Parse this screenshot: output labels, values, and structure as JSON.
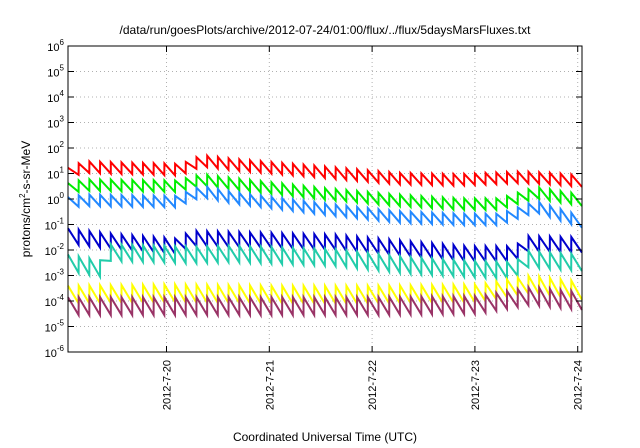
{
  "chart_data": {
    "type": "line",
    "title": "/data/run/goesPlots/archive/2012-07-24/01:00/flux/../flux/5daysMarsFluxes.txt",
    "xlabel": "Coordinated Universal Time (UTC)",
    "ylabel_parts": {
      "pre": "protons/cm",
      "sup": "2",
      "post": "-s-sr-MeV"
    },
    "x_range": [
      "2012-07-19 01:00",
      "2012-07-24 01:00"
    ],
    "x_ticks": [
      {
        "label": "2012-7-20",
        "day": 0.9583
      },
      {
        "label": "2012-7-21",
        "day": 1.9583
      },
      {
        "label": "2012-7-22",
        "day": 2.9583
      },
      {
        "label": "2012-7-23",
        "day": 3.9583
      },
      {
        "label": "2012-7-24",
        "day": 4.9583
      }
    ],
    "y_scale": "log",
    "y_ticks": [
      {
        "base": "10",
        "exp": "6",
        "p": 6
      },
      {
        "base": "10",
        "exp": "5",
        "p": 5
      },
      {
        "base": "10",
        "exp": "4",
        "p": 4
      },
      {
        "base": "10",
        "exp": "3",
        "p": 3
      },
      {
        "base": "10",
        "exp": "2",
        "p": 2
      },
      {
        "base": "10",
        "exp": "1",
        "p": 1
      },
      {
        "base": "10",
        "exp": "0",
        "p": 0
      },
      {
        "base": "10",
        "exp": "-1",
        "p": -1
      },
      {
        "base": "10",
        "exp": "-2",
        "p": -2
      },
      {
        "base": "10",
        "exp": "-3",
        "p": -3
      },
      {
        "base": "10",
        "exp": "-4",
        "p": -4
      },
      {
        "base": "10",
        "exp": "-5",
        "p": -5
      },
      {
        "base": "10",
        "exp": "-6",
        "p": -6
      }
    ],
    "grid": true,
    "series": [
      {
        "color": "#ff0000",
        "cycles": 48,
        "envelope": [
          [
            0.0,
            1.0
          ],
          [
            0.15,
            1.25
          ],
          [
            1.1,
            1.15
          ],
          [
            1.3,
            1.5
          ],
          [
            1.6,
            1.35
          ],
          [
            2.5,
            1.05
          ],
          [
            3.2,
            0.8
          ],
          [
            3.8,
            0.75
          ],
          [
            4.4,
            0.85
          ],
          [
            4.7,
            0.8
          ],
          [
            5.0,
            0.7
          ]
        ],
        "amp": 0.45
      },
      {
        "color": "#00ee00",
        "cycles": 48,
        "envelope": [
          [
            0.0,
            0.4
          ],
          [
            0.15,
            0.55
          ],
          [
            1.05,
            0.5
          ],
          [
            1.3,
            0.75
          ],
          [
            1.6,
            0.6
          ],
          [
            2.5,
            0.2
          ],
          [
            3.2,
            -0.05
          ],
          [
            3.8,
            -0.2
          ],
          [
            4.2,
            -0.2
          ],
          [
            4.55,
            0.25
          ],
          [
            5.0,
            -0.05
          ]
        ],
        "amp": 0.45
      },
      {
        "color": "#2288ff",
        "cycles": 48,
        "envelope": [
          [
            0.0,
            -0.15
          ],
          [
            0.15,
            -0.05
          ],
          [
            1.05,
            -0.1
          ],
          [
            1.3,
            0.3
          ],
          [
            1.6,
            0.05
          ],
          [
            2.5,
            -0.4
          ],
          [
            3.2,
            -0.7
          ],
          [
            3.8,
            -0.8
          ],
          [
            4.2,
            -0.8
          ],
          [
            4.55,
            -0.3
          ],
          [
            5.0,
            -0.9
          ]
        ],
        "amp": 0.45
      },
      {
        "color": "#0000cc",
        "cycles": 48,
        "envelope": [
          [
            0.0,
            -1.45
          ],
          [
            0.4,
            -1.65
          ],
          [
            1.05,
            -1.85
          ],
          [
            1.2,
            -1.55
          ],
          [
            1.7,
            -1.6
          ],
          [
            2.6,
            -1.7
          ],
          [
            3.3,
            -1.95
          ],
          [
            3.9,
            -2.15
          ],
          [
            4.35,
            -2.15
          ],
          [
            4.45,
            -1.75
          ],
          [
            5.0,
            -1.8
          ]
        ],
        "amp": 0.6
      },
      {
        "color": "#22ccaa",
        "cycles": 48,
        "envelope": [
          [
            0.0,
            -2.5
          ],
          [
            0.35,
            -2.75
          ],
          [
            0.38,
            -2.1
          ],
          [
            1.2,
            -2.2
          ],
          [
            1.6,
            -2.15
          ],
          [
            2.6,
            -2.3
          ],
          [
            3.3,
            -2.6
          ],
          [
            3.95,
            -2.75
          ],
          [
            4.35,
            -2.8
          ],
          [
            4.45,
            -2.35
          ],
          [
            5.0,
            -2.5
          ]
        ],
        "amp": 0.65
      },
      {
        "color": "#ffff00",
        "cycles": 48,
        "envelope": [
          [
            0.0,
            -3.75
          ],
          [
            1.0,
            -3.7
          ],
          [
            2.0,
            -3.75
          ],
          [
            3.0,
            -3.75
          ],
          [
            4.0,
            -3.7
          ],
          [
            4.5,
            -3.35
          ],
          [
            5.0,
            -3.6
          ]
        ],
        "amp": 0.7
      },
      {
        "color": "#993366",
        "cycles": 48,
        "envelope": [
          [
            0.0,
            -4.2
          ],
          [
            1.0,
            -4.2
          ],
          [
            2.0,
            -4.2
          ],
          [
            3.0,
            -4.2
          ],
          [
            4.0,
            -4.15
          ],
          [
            4.5,
            -3.8
          ],
          [
            5.0,
            -4.0
          ]
        ],
        "amp": 0.7
      }
    ]
  }
}
